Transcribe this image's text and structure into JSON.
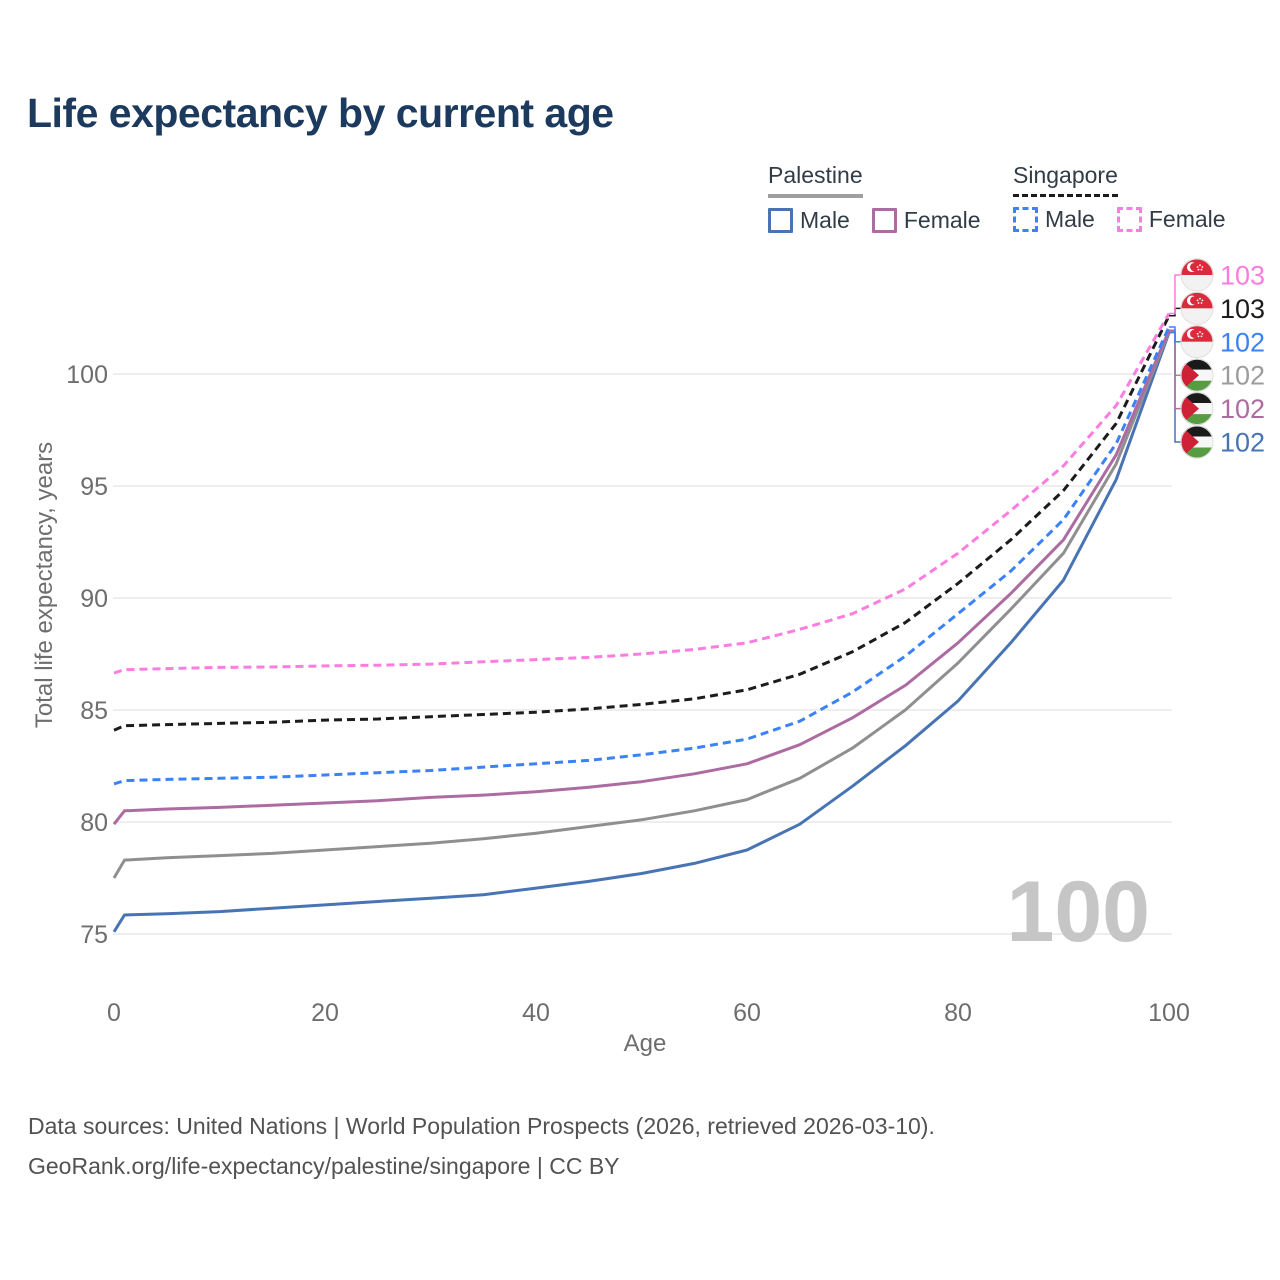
{
  "title": "Life expectancy by current age",
  "watermark": "100",
  "legend": {
    "groups": [
      {
        "name": "Palestine",
        "underline": "solid",
        "underline_color": "#9e9e9e",
        "items": [
          {
            "label": "Male",
            "color": "#4874b4",
            "dashed": false
          },
          {
            "label": "Female",
            "color": "#ad6ca1",
            "dashed": false
          }
        ]
      },
      {
        "name": "Singapore",
        "underline": "dashed",
        "underline_color": "#1c1c1c",
        "items": [
          {
            "label": "Male",
            "color": "#3b82f6",
            "dashed": true
          },
          {
            "label": "Female",
            "color": "#fc7de0",
            "dashed": true
          }
        ]
      }
    ]
  },
  "chart_data": {
    "type": "line",
    "title": "Life expectancy by current age",
    "xlabel": "Age",
    "ylabel": "Total life expectancy, years",
    "xlim": [
      0,
      100
    ],
    "ylim": [
      73,
      104
    ],
    "xticks": [
      0,
      20,
      40,
      60,
      80,
      100
    ],
    "yticks": [
      75,
      80,
      85,
      90,
      95,
      100
    ],
    "grid": "horizontal",
    "x": [
      0,
      1,
      5,
      10,
      15,
      20,
      25,
      30,
      35,
      40,
      45,
      50,
      55,
      60,
      65,
      70,
      75,
      80,
      85,
      90,
      95,
      100
    ],
    "series": [
      {
        "id": "palestine-male",
        "country": "Palestine",
        "sex": "Male",
        "color": "#4874b4",
        "dashed": false,
        "row": 5,
        "values": [
          75.1,
          75.85,
          75.9,
          76.0,
          76.15,
          76.3,
          76.45,
          76.6,
          76.75,
          77.05,
          77.35,
          77.7,
          78.15,
          78.75,
          79.9,
          81.6,
          83.4,
          85.4,
          88.0,
          90.8,
          95.3,
          101.85
        ]
      },
      {
        "id": "palestine-all",
        "country": "Palestine",
        "sex": "Both",
        "color": "#8f8f8f",
        "dashed": false,
        "row": 3,
        "values": [
          77.5,
          78.3,
          78.4,
          78.5,
          78.6,
          78.75,
          78.9,
          79.05,
          79.25,
          79.5,
          79.8,
          80.1,
          80.5,
          81.0,
          81.95,
          83.3,
          85.0,
          87.1,
          89.5,
          92.0,
          96.0,
          101.9
        ]
      },
      {
        "id": "palestine-female",
        "country": "Palestine",
        "sex": "Female",
        "color": "#ad6ca1",
        "dashed": false,
        "row": 4,
        "values": [
          79.9,
          80.5,
          80.58,
          80.65,
          80.75,
          80.85,
          80.95,
          81.1,
          81.2,
          81.35,
          81.55,
          81.8,
          82.15,
          82.6,
          83.45,
          84.65,
          86.1,
          88.0,
          90.2,
          92.6,
          96.4,
          101.95
        ]
      },
      {
        "id": "singapore-male",
        "country": "Singapore",
        "sex": "Male",
        "color": "#3b82f6",
        "dashed": true,
        "row": 2,
        "values": [
          81.7,
          81.85,
          81.9,
          81.95,
          82.0,
          82.1,
          82.2,
          82.3,
          82.45,
          82.6,
          82.75,
          83.0,
          83.3,
          83.7,
          84.5,
          85.8,
          87.4,
          89.3,
          91.2,
          93.5,
          96.9,
          102.1
        ]
      },
      {
        "id": "singapore-all",
        "country": "Singapore",
        "sex": "Both",
        "color": "#1c1c1c",
        "dashed": true,
        "row": 1,
        "values": [
          84.1,
          84.3,
          84.35,
          84.4,
          84.45,
          84.55,
          84.6,
          84.7,
          84.8,
          84.9,
          85.05,
          85.25,
          85.5,
          85.9,
          86.6,
          87.6,
          88.9,
          90.65,
          92.6,
          94.8,
          97.8,
          102.6
        ]
      },
      {
        "id": "singapore-female",
        "country": "Singapore",
        "sex": "Female",
        "color": "#fc7de0",
        "dashed": true,
        "row": 0,
        "values": [
          86.65,
          86.8,
          86.85,
          86.9,
          86.92,
          86.97,
          87.0,
          87.05,
          87.15,
          87.25,
          87.35,
          87.5,
          87.7,
          88.0,
          88.6,
          89.3,
          90.4,
          92.0,
          93.9,
          95.9,
          98.6,
          102.7
        ]
      }
    ],
    "end_label_rows": [
      {
        "flag": "singapore",
        "label": "103",
        "color": "#fc7de0"
      },
      {
        "flag": "singapore",
        "label": "103",
        "color": "#1c1c1c"
      },
      {
        "flag": "singapore",
        "label": "102",
        "color": "#3b82f6"
      },
      {
        "flag": "palestine",
        "label": "102",
        "color": "#9c9c9c"
      },
      {
        "flag": "palestine",
        "label": "102",
        "color": "#ad6ca1"
      },
      {
        "flag": "palestine",
        "label": "102",
        "color": "#4874b4"
      }
    ],
    "legend_position": "top-right"
  },
  "footer": {
    "line1": "Data sources: United Nations | World Population Prospects (2026, retrieved 2026-03-10).",
    "line2": "GeoRank.org/life-expectancy/palestine/singapore | CC BY"
  }
}
